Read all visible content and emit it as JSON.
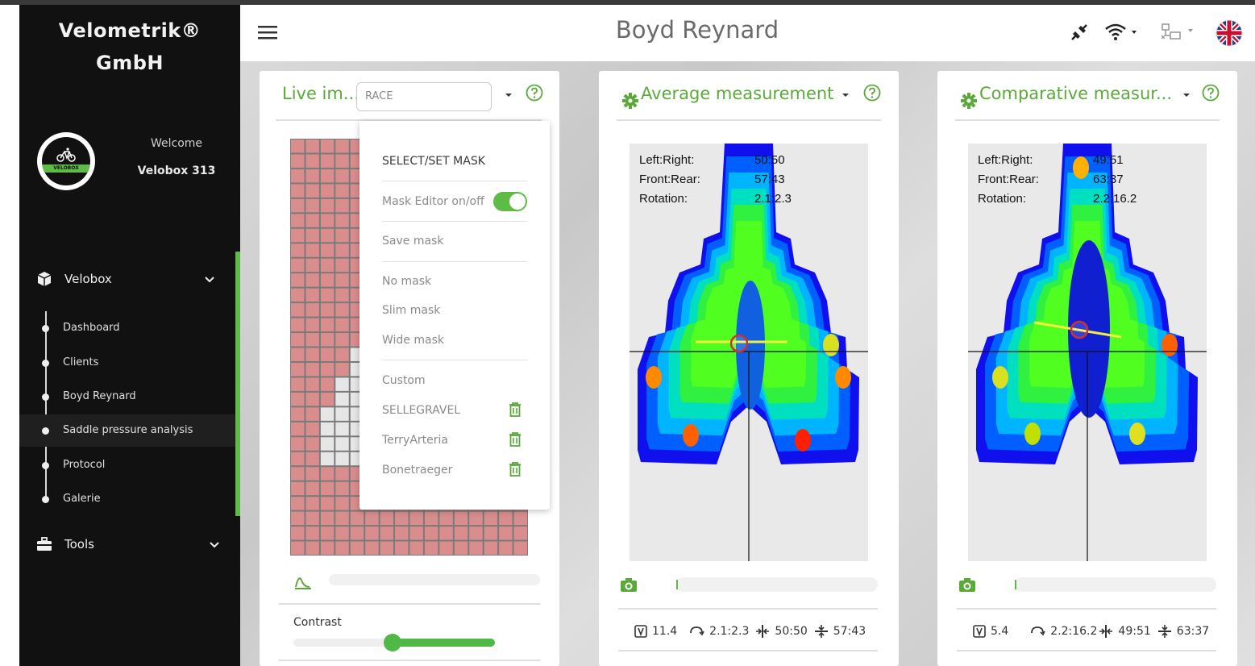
{
  "sidebar": {
    "brand": "Velometrik®\nGmbH",
    "brand_line1": "Velometrik®",
    "brand_line2": "GmbH",
    "logo_text": "VELOBOX",
    "welcome": "Welcome",
    "user": "Velobox 313",
    "groups": [
      {
        "label": "Velobox",
        "icon": "cube-icon"
      },
      {
        "label": "Tools",
        "icon": "toolbox-icon"
      }
    ],
    "items": [
      {
        "label": "Dashboard"
      },
      {
        "label": "Clients"
      },
      {
        "label": "Boyd Reynard"
      },
      {
        "label": "Saddle pressure analysis",
        "active": true
      },
      {
        "label": "Protocol"
      },
      {
        "label": "Galerie"
      }
    ],
    "accent_color": "#5dbb46"
  },
  "header": {
    "title": "Boyd Reynard",
    "icons": [
      "plug-disconnected-icon",
      "wifi-icon",
      "network-icon",
      "uk-flag-icon"
    ]
  },
  "cards": {
    "live": {
      "title": "Live im...",
      "mask_input_placeholder": "RACE",
      "popup": {
        "heading": "SELECT/SET MASK",
        "mask_editor_label": "Mask Editor on/off",
        "mask_editor_on": true,
        "save_mask": "Save mask",
        "no_mask": "No mask",
        "slim_mask": "Slim mask",
        "wide_mask": "Wide mask",
        "custom": "Custom",
        "custom_masks": [
          "SELLEGRAVEL",
          "TerryArteria",
          "Bonetraeger"
        ]
      },
      "contrast_label": "Contrast",
      "contrast_value": 0.5
    },
    "average": {
      "title": "Average measurement",
      "labels": [
        "Left:Right:",
        "Front:Rear:",
        "Rotation:"
      ],
      "values": [
        "50:50",
        "57:43",
        "2.1:2.3"
      ],
      "stats": {
        "v": "11.4",
        "rotation": "2.1:2.3",
        "lr": "50:50",
        "fr": "57:43"
      }
    },
    "comparative": {
      "title": "Comparative measur...",
      "labels": [
        "Left:Right:",
        "Front:Rear:",
        "Rotation:"
      ],
      "values": [
        "49:51",
        "63:37",
        "2.2:16.2"
      ],
      "stats": {
        "v": "5.4",
        "rotation": "2.2:16.2",
        "lr": "49:51",
        "fr": "63:37"
      }
    }
  }
}
